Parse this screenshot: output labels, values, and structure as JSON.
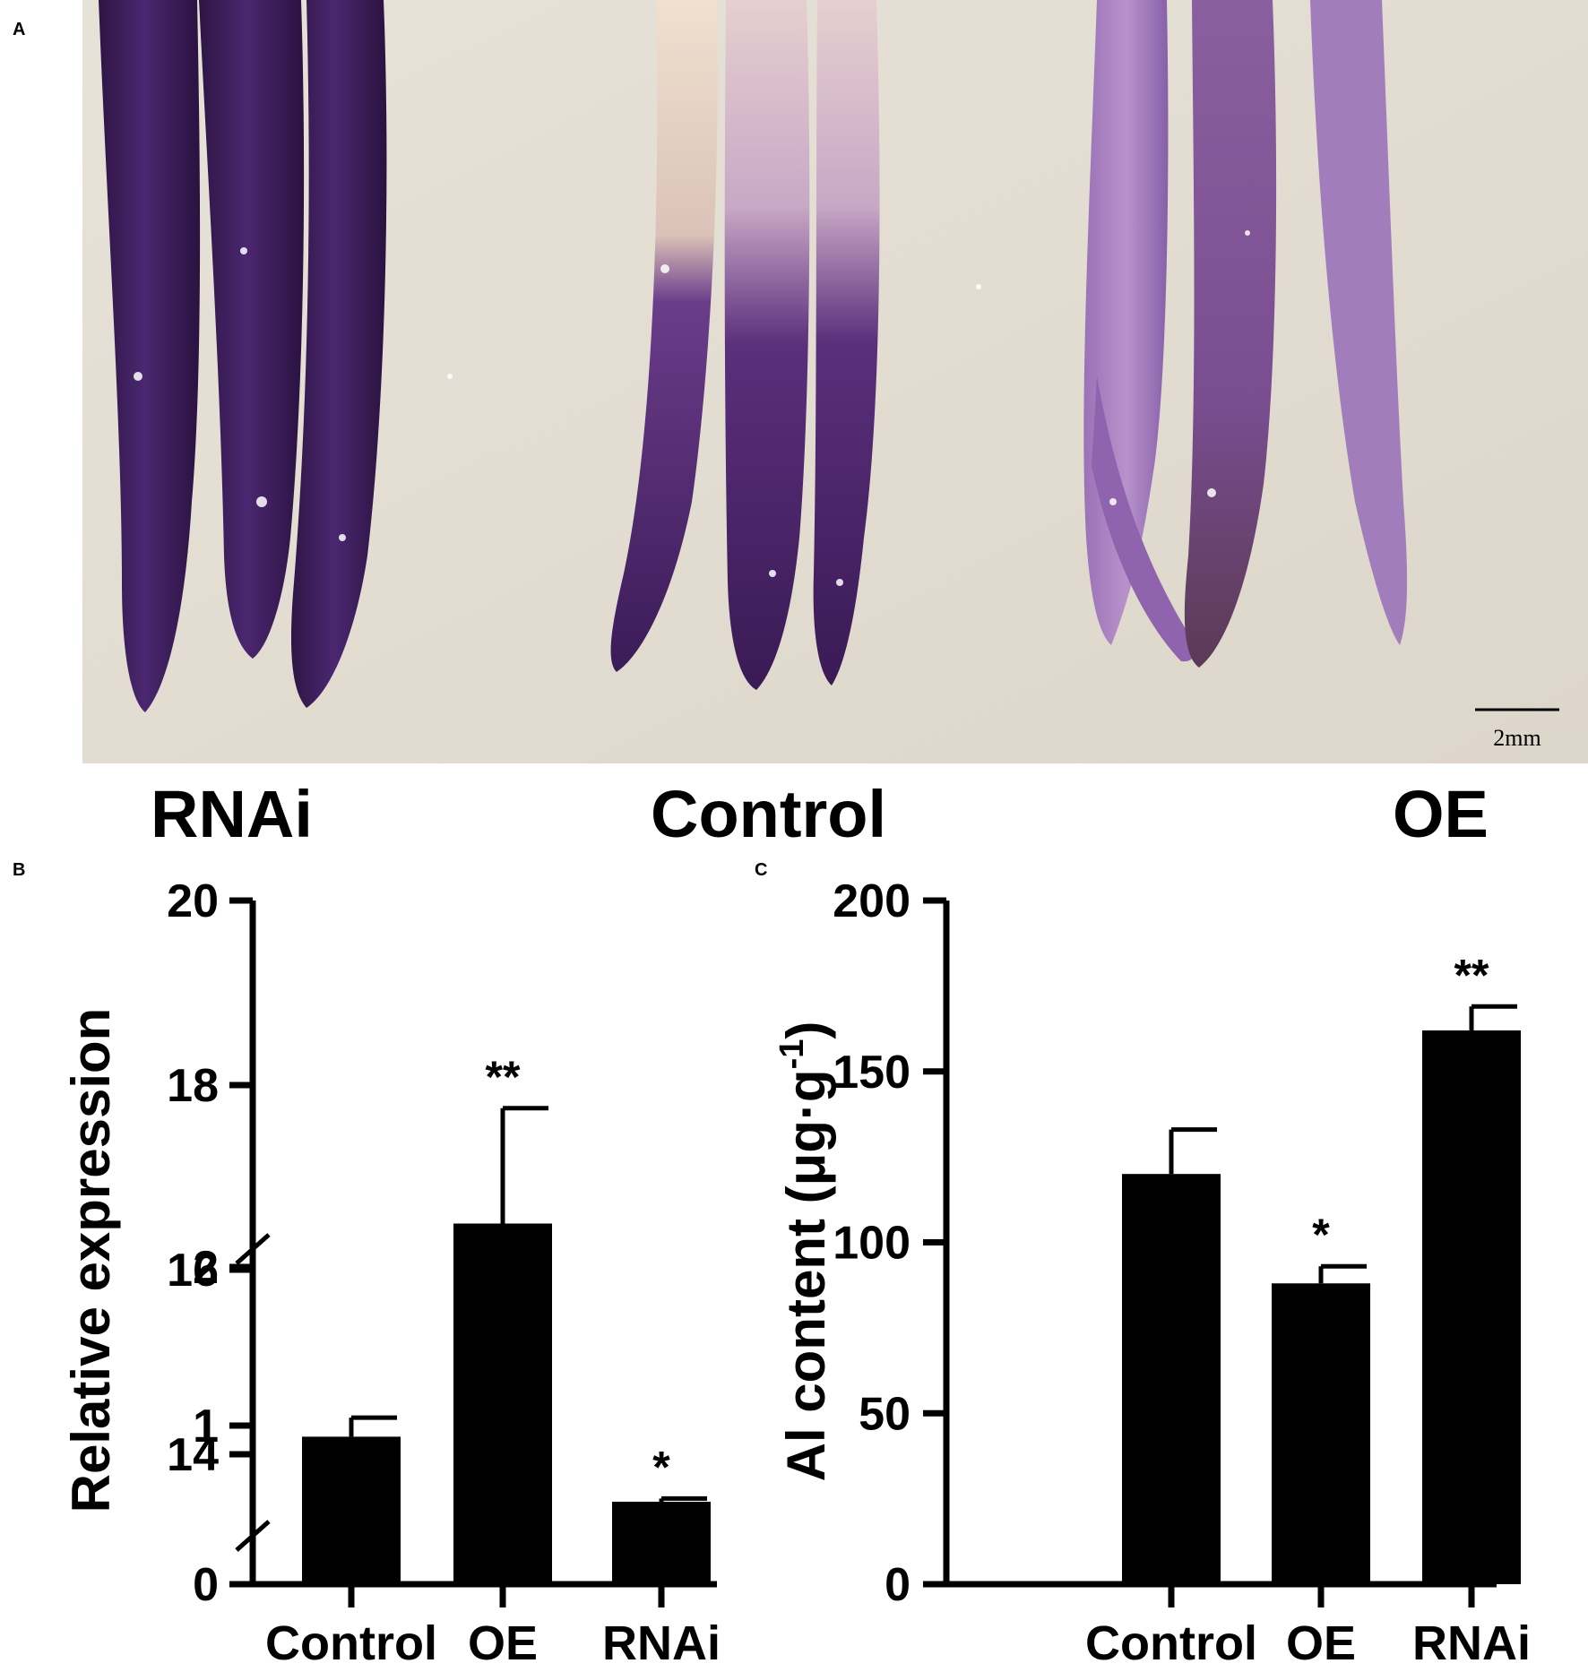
{
  "panels": {
    "a": {
      "letter": "A"
    },
    "b": {
      "letter": "B"
    },
    "c": {
      "letter": "C"
    }
  },
  "photo": {
    "scale_bar_label": "2mm",
    "group_labels": [
      "RNAi",
      "Control",
      "OE"
    ],
    "colors": {
      "background": "#e4ded3",
      "stain_dark": "#3a1a55",
      "stain_light": "#a27dbc"
    }
  },
  "chart_data": [
    {
      "type": "bar",
      "categories": [
        "Control",
        "OE",
        "RNAi"
      ],
      "values": [
        0.93,
        16.5,
        0.52
      ],
      "errors": [
        0.12,
        1.25,
        0.02
      ],
      "significance": [
        "",
        "**",
        "*"
      ],
      "ylabel": "Relative  expression",
      "axis_break": {
        "lower": [
          0,
          2
        ],
        "upper": [
          13,
          20
        ]
      },
      "yticks_lower": [
        "0",
        "1",
        "2"
      ],
      "yticks_upper": [
        "14",
        "16",
        "18",
        "20"
      ],
      "bar_color": "#000000"
    },
    {
      "type": "bar",
      "categories": [
        "Control",
        "OE",
        "RNAi"
      ],
      "values": [
        120,
        88,
        162
      ],
      "errors": [
        13,
        5,
        7
      ],
      "significance": [
        "",
        "*",
        "**"
      ],
      "ylabel_main": "Al content (μg·g",
      "ylabel_sup": "-1",
      "ylabel_close": ")",
      "ylim": [
        0,
        200
      ],
      "yticks": [
        "0",
        "50",
        "100",
        "150",
        "200"
      ],
      "bar_color": "#000000"
    }
  ]
}
